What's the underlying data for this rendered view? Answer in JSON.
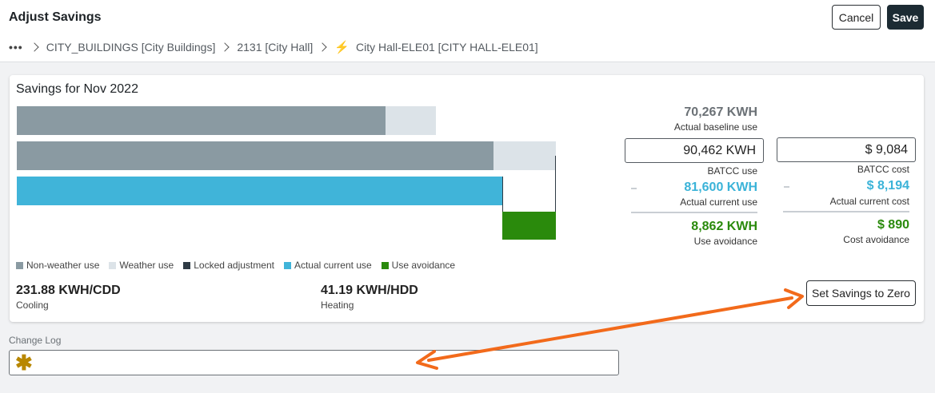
{
  "header": {
    "title": "Adjust Savings",
    "cancel_label": "Cancel",
    "save_label": "Save"
  },
  "breadcrumb": {
    "more": "•••",
    "items": [
      "CITY_BUILDINGS [City Buildings]",
      "2131 [City Hall]",
      "City Hall-ELE01 [CITY HALL-ELE01]"
    ],
    "last_icon": "lightning-bolt-icon"
  },
  "card": {
    "title": "Savings for Nov 2022",
    "chart": {
      "baseline_bar": {
        "non_weather": 70267,
        "weather_total": 70267
      },
      "batcc_bar": {
        "total": 90462
      },
      "current_bar": {
        "actual_current": 81600,
        "use_avoidance": 8862
      }
    },
    "legend": [
      {
        "label": "Non-weather use",
        "color": "#8a9aa2"
      },
      {
        "label": "Weather use",
        "color": "#dce3e8"
      },
      {
        "label": "Locked adjustment",
        "color": "#2f3b45"
      },
      {
        "label": "Actual current use",
        "color": "#40b4d9"
      },
      {
        "label": "Use avoidance",
        "color": "#2a8a0c"
      }
    ],
    "cooling": {
      "value": "231.88 KWH/CDD",
      "label": "Cooling"
    },
    "heating": {
      "value": "41.19 KWH/HDD",
      "label": "Heating"
    },
    "use_col": {
      "baseline_value": "70,267 KWH",
      "baseline_label": "Actual baseline use",
      "batcc_value": "90,462 KWH",
      "batcc_label": "BATCC use",
      "current_value": "81,600 KWH",
      "current_label": "Actual current use",
      "avoidance_value": "8,862 KWH",
      "avoidance_label": "Use avoidance"
    },
    "cost_col": {
      "batcc_value": "$ 9,084",
      "batcc_label": "BATCC cost",
      "current_value": "$ 8,194",
      "current_label": "Actual current cost",
      "avoidance_value": "$ 890",
      "avoidance_label": "Cost avoidance"
    },
    "set_zero_label": "Set Savings to Zero"
  },
  "change_log": {
    "label": "Change Log",
    "value": "",
    "required_icon": "required-asterisk-icon"
  },
  "annotation": {
    "color": "#f26a1b",
    "type": "double-headed-arrow"
  }
}
